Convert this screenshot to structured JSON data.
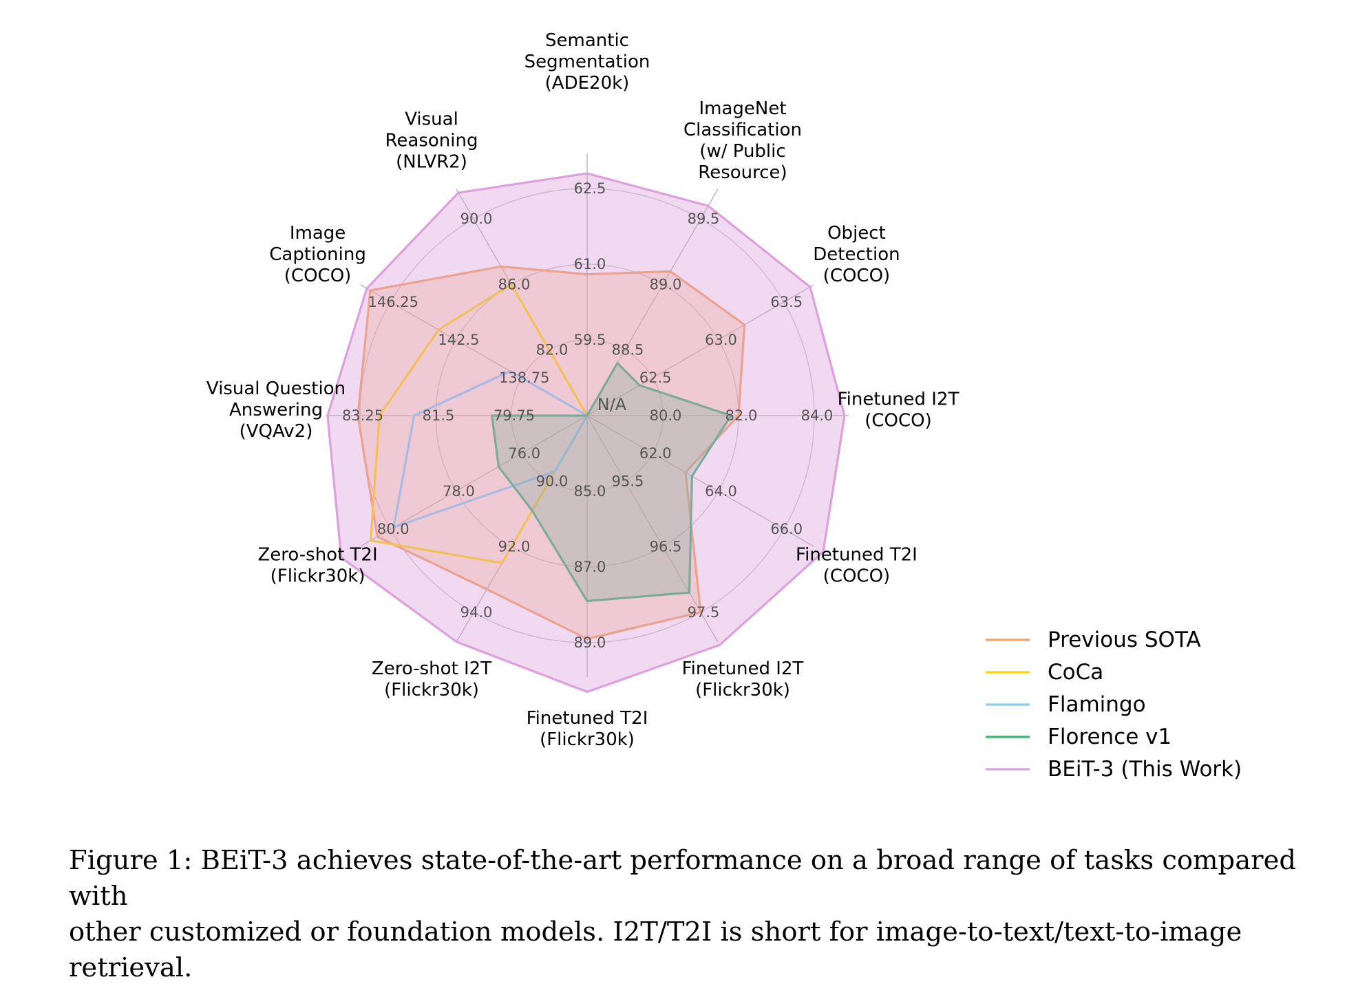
{
  "chart_data": {
    "type": "radar",
    "axes": [
      {
        "label": "Semantic\nSegmentation\n(ADE20k)",
        "ticks": [
          "59.5",
          "61.0",
          "62.5"
        ],
        "inner_tick": "N/A"
      },
      {
        "label": "ImageNet\nClassification\n(w/ Public\nResource)",
        "ticks": [
          "88.5",
          "89.0",
          "89.5"
        ]
      },
      {
        "label": "Object\nDetection\n(COCO)",
        "ticks": [
          "62.5",
          "63.0",
          "63.5"
        ]
      },
      {
        "label": "Finetuned I2T\n(COCO)",
        "ticks": [
          "80.0",
          "82.0",
          "84.0"
        ]
      },
      {
        "label": "Finetuned T2I\n(COCO)",
        "ticks": [
          "62.0",
          "64.0",
          "66.0"
        ]
      },
      {
        "label": "Finetuned I2T\n(Flickr30k)",
        "ticks": [
          "95.5",
          "96.5",
          "97.5"
        ]
      },
      {
        "label": "Finetuned T2I\n(Flickr30k)",
        "ticks": [
          "85.0",
          "87.0",
          "89.0"
        ]
      },
      {
        "label": "Zero-shot I2T\n(Flickr30k)",
        "ticks": [
          "90.0",
          "92.0",
          "94.0"
        ]
      },
      {
        "label": "Zero-shot T2I\n(Flickr30k)",
        "ticks": [
          "76.0",
          "78.0",
          "80.0"
        ]
      },
      {
        "label": "Visual Question\nAnswering\n(VQAv2)",
        "ticks": [
          "79.75",
          "81.5",
          "83.25"
        ]
      },
      {
        "label": "Image\nCaptioning\n(COCO)",
        "ticks": [
          "138.75",
          "142.5",
          "146.25"
        ]
      },
      {
        "label": "Visual\nReasoning\n(NLVR2)",
        "ticks": [
          "82.0",
          "86.0",
          "90.0"
        ]
      }
    ],
    "rlim": [
      0,
      1
    ],
    "grid": true,
    "legend_position": "bottom-right",
    "series": [
      {
        "name": "Previous SOTA",
        "color": "#f4a460",
        "fill": true,
        "fill_opacity": 0.3,
        "values": [
          60.8,
          89.1,
          63.2,
          82.0,
          63.0,
          97.5,
          88.9,
          93.3,
          80.4,
          83.3,
          147.4,
          87.1
        ]
      },
      {
        "name": "CoCa",
        "color": "#ffd700",
        "fill": false,
        "values": [
          null,
          null,
          null,
          null,
          null,
          null,
          null,
          92.5,
          80.6,
          82.8,
          143.5,
          86.0
        ]
      },
      {
        "name": "Flamingo",
        "color": "#87ceeb",
        "fill": false,
        "values": [
          null,
          null,
          null,
          null,
          null,
          null,
          null,
          89.7,
          79.9,
          82.0,
          139.4,
          null
        ]
      },
      {
        "name": "Florence v1",
        "color": "#3cb371",
        "fill": true,
        "fill_opacity": 0.3,
        "values": [
          null,
          88.4,
          62.4,
          81.8,
          63.2,
          97.2,
          87.9,
          90.9,
          76.7,
          80.2,
          null,
          null
        ]
      },
      {
        "name": "BEiT-3 (This Work)",
        "color": "#dda0dd",
        "fill": true,
        "fill_opacity": 0.4,
        "values": [
          62.8,
          89.6,
          63.7,
          84.8,
          67.2,
          98.0,
          90.3,
          94.9,
          81.5,
          84.0,
          147.6,
          91.6
        ]
      }
    ]
  },
  "caption": {
    "line1": "Figure 1: BEiT-3 achieves state-of-the-art performance on a broad range of tasks compared with",
    "line2": "other customized or foundation models. I2T/T2I is short for image-to-text/text-to-image retrieval."
  }
}
